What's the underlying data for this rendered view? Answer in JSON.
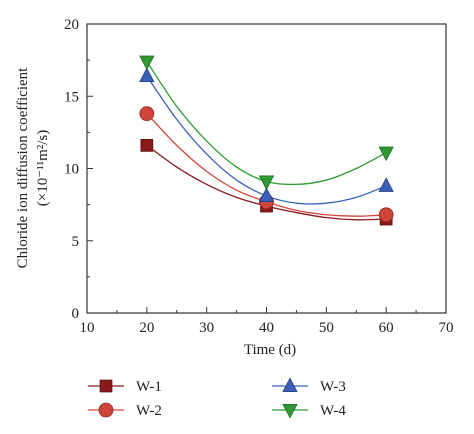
{
  "chart_data": {
    "type": "scatter",
    "xlabel": "Time (d)",
    "ylabel": "Chloride ion diffusion coefficient",
    "ylabel_unit": "(×10⁻¹¹m²/s)",
    "xlim": [
      10,
      70
    ],
    "ylim": [
      0,
      20
    ],
    "x_ticks": [
      10,
      20,
      30,
      40,
      50,
      60,
      70
    ],
    "y_ticks": [
      0,
      5,
      10,
      15,
      20
    ],
    "grid": false,
    "legend_position": "bottom",
    "series": [
      {
        "name": "W-1",
        "marker": "square",
        "color": "#8b1a1a",
        "x": [
          20,
          40,
          60
        ],
        "y": [
          11.6,
          7.4,
          6.5
        ],
        "curve": [
          [
            20,
            11.6
          ],
          [
            25,
            10.1
          ],
          [
            30,
            8.9
          ],
          [
            35,
            8.0
          ],
          [
            40,
            7.4
          ],
          [
            45,
            6.95
          ],
          [
            50,
            6.6
          ],
          [
            55,
            6.45
          ],
          [
            60,
            6.5
          ]
        ]
      },
      {
        "name": "W-2",
        "marker": "circle",
        "color": "#d0453a",
        "x": [
          20,
          40,
          60
        ],
        "y": [
          13.8,
          7.7,
          6.8
        ],
        "curve": [
          [
            20,
            13.8
          ],
          [
            25,
            11.6
          ],
          [
            30,
            9.8
          ],
          [
            35,
            8.5
          ],
          [
            40,
            7.7
          ],
          [
            45,
            7.1
          ],
          [
            50,
            6.8
          ],
          [
            55,
            6.7
          ],
          [
            60,
            6.8
          ]
        ]
      },
      {
        "name": "W-3",
        "marker": "triangle-up",
        "color": "#3a5fb8",
        "x": [
          20,
          40,
          60
        ],
        "y": [
          16.4,
          8.1,
          8.8
        ],
        "curve": [
          [
            20,
            16.4
          ],
          [
            25,
            13.4
          ],
          [
            30,
            11.0
          ],
          [
            35,
            9.2
          ],
          [
            40,
            8.1
          ],
          [
            45,
            7.6
          ],
          [
            50,
            7.6
          ],
          [
            55,
            8.0
          ],
          [
            60,
            8.8
          ]
        ]
      },
      {
        "name": "W-4",
        "marker": "triangle-down",
        "color": "#2f9a33",
        "x": [
          20,
          40,
          60
        ],
        "y": [
          17.4,
          9.1,
          11.1
        ],
        "curve": [
          [
            20,
            17.4
          ],
          [
            25,
            14.3
          ],
          [
            30,
            11.9
          ],
          [
            35,
            10.1
          ],
          [
            40,
            9.1
          ],
          [
            45,
            8.9
          ],
          [
            50,
            9.2
          ],
          [
            55,
            10.0
          ],
          [
            60,
            11.1
          ]
        ]
      }
    ]
  }
}
